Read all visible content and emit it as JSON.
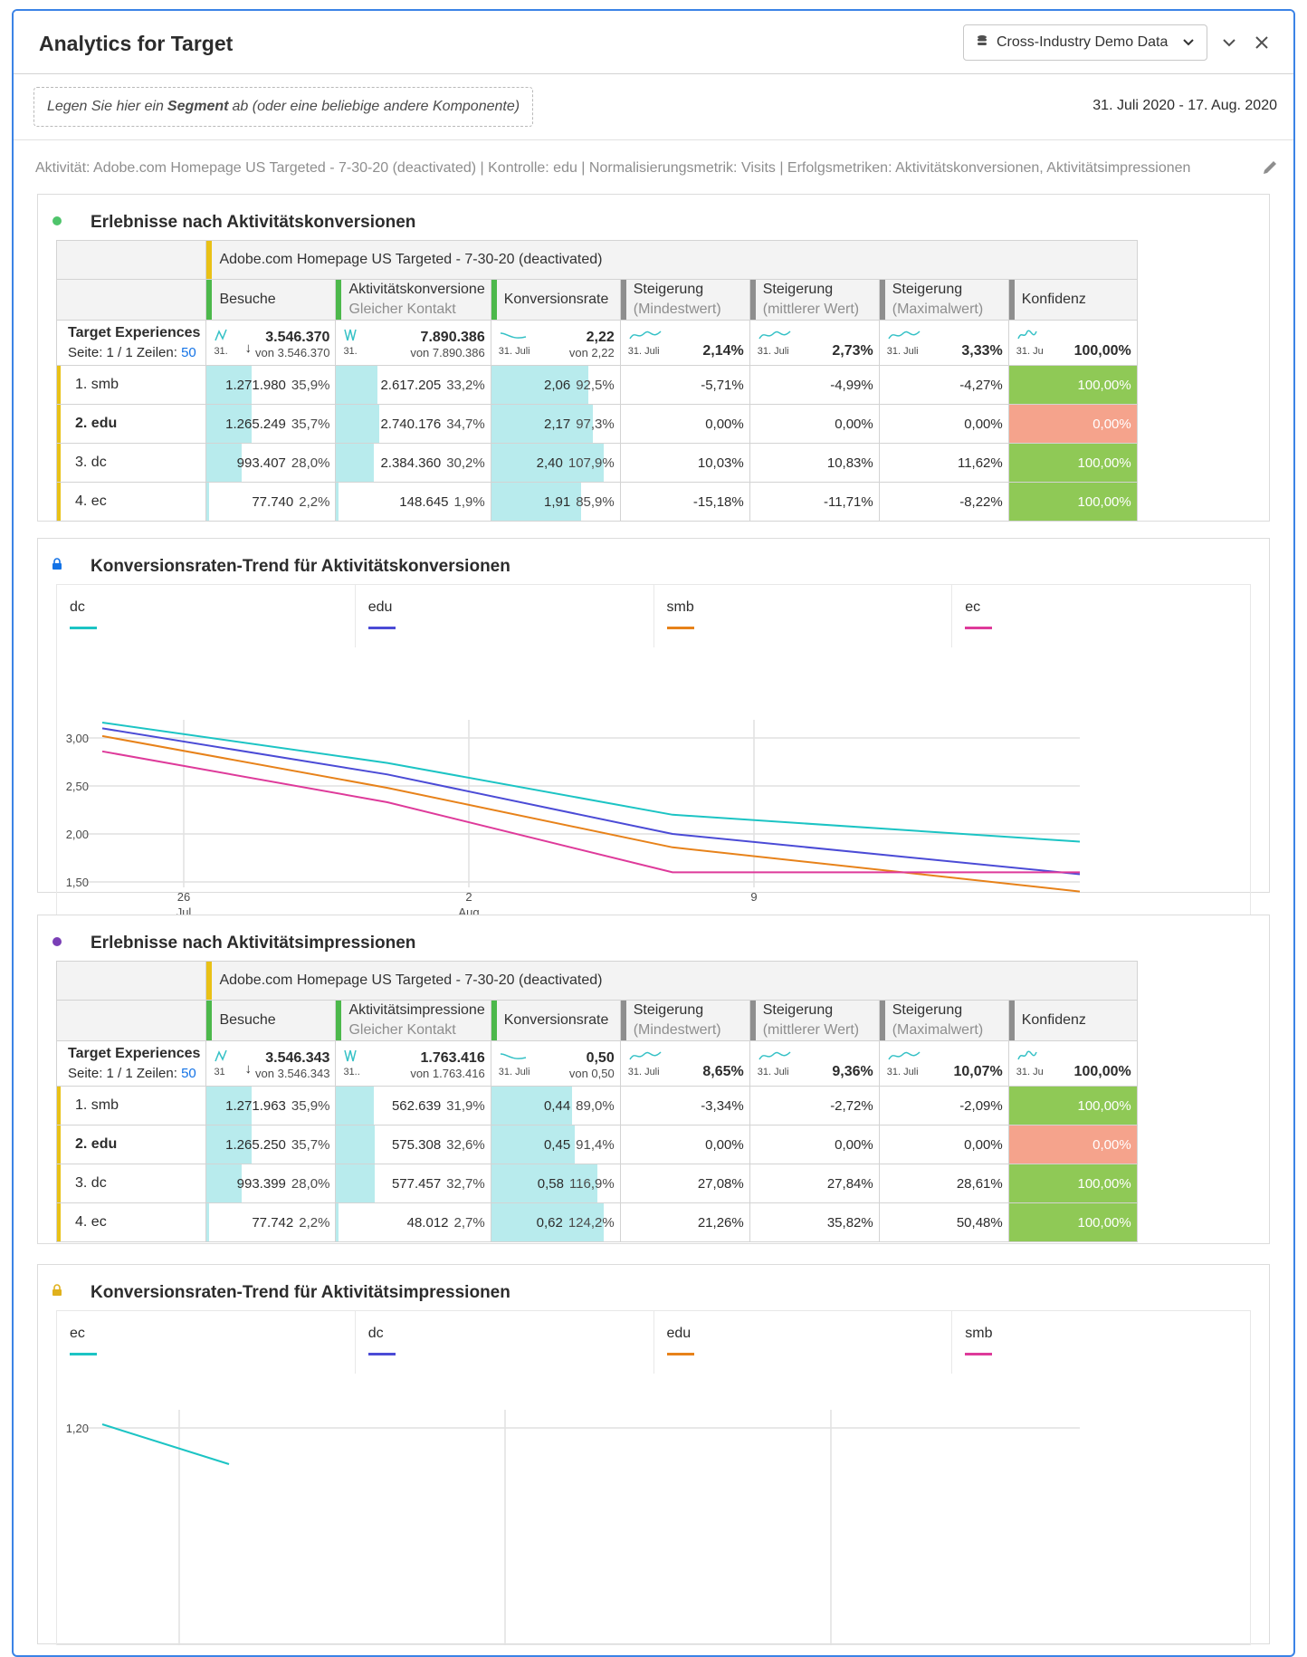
{
  "header": {
    "title": "Analytics for Target",
    "datasource": "Cross-Industry Demo Data"
  },
  "segment_drop": {
    "pre": "Legen Sie hier ein",
    "bold": "Segment",
    "post": "ab (oder eine beliebige andere Komponente)"
  },
  "date_range": "31. Juli 2020 - 17. Aug. 2020",
  "activity_line": "Aktivität: Adobe.com Homepage US Targeted - 7-30-20 (deactivated) | Kontrolle: edu | Normalisierungsmetrik: Visits | Erfolgsmetriken: Aktivitätskonversionen, Aktivitätsimpressionen",
  "panels": {
    "t1": {
      "title": "Erlebnisse nach Aktivitätskonversionen",
      "dot": "#4fc46b"
    },
    "c1": {
      "title": "Konversionsraten-Trend für Aktivitätskonversionen",
      "lock_color": "#1473e6"
    },
    "t2": {
      "title": "Erlebnisse nach Aktivitätsimpressionen",
      "dot": "#7a3fb6"
    },
    "c2": {
      "title": "Konversionsraten-Trend für Aktivitätsimpressionen",
      "lock_color": "#e0b11c"
    }
  },
  "table1": {
    "activity": "Adobe.com Homepage US Targeted - 7-30-20 (deactivated)",
    "dimension": "Target Experiences",
    "page_info": "Seite: 1 / 1 Zeilen:",
    "rows_per_page": "50",
    "columns": [
      {
        "label": "Besuche",
        "sub": "",
        "bar": "#4cb84b"
      },
      {
        "label": "Aktivitätskonversione",
        "sub": "Gleicher Kontakt",
        "bar": "#4cb84b"
      },
      {
        "label": "Konversionsrate",
        "sub": "",
        "bar": "#4cb84b"
      },
      {
        "label": "Steigerung",
        "sub": "(Mindestwert)",
        "bar": "#8e8e8e"
      },
      {
        "label": "Steigerung",
        "sub": "(mittlerer Wert)",
        "bar": "#8e8e8e"
      },
      {
        "label": "Steigerung",
        "sub": "(Maximalwert)",
        "bar": "#8e8e8e"
      },
      {
        "label": "Konfidenz",
        "sub": "",
        "bar": "#8e8e8e"
      }
    ],
    "totals": [
      {
        "big": "3.546.370",
        "small": "von 3.546.370",
        "date": "31."
      },
      {
        "big": "7.890.386",
        "small": "von 7.890.386",
        "date": "31."
      },
      {
        "big": "2,22",
        "small": "von 2,22",
        "date": "31. Juli"
      },
      {
        "big": "2,14%",
        "small": "",
        "date": "31. Juli"
      },
      {
        "big": "2,73%",
        "small": "",
        "date": "31. Juli"
      },
      {
        "big": "3,33%",
        "small": "",
        "date": "31. Juli"
      },
      {
        "big": "100,00%",
        "small": "",
        "date": "31. Ju"
      }
    ],
    "rows": [
      {
        "label": "1. smb",
        "bold": false,
        "v1": "1.271.980",
        "p1": "35,9%",
        "f1": 0.359,
        "v2": "2.617.205",
        "p2": "33,2%",
        "f2": 0.332,
        "v3": "2,06",
        "p3": "92,5%",
        "f3": 0.86,
        "l1": "-5,71%",
        "l2": "-4,99%",
        "l3": "-4,27%",
        "conf": "100,00%",
        "cc": "#8fc956"
      },
      {
        "label": "2. edu",
        "bold": true,
        "v1": "1.265.249",
        "p1": "35,7%",
        "f1": 0.357,
        "v2": "2.740.176",
        "p2": "34,7%",
        "f2": 0.347,
        "v3": "2,17",
        "p3": "97,3%",
        "f3": 0.9,
        "l1": "0,00%",
        "l2": "0,00%",
        "l3": "0,00%",
        "conf": "0,00%",
        "cc": "#f5a38c"
      },
      {
        "label": "3. dc",
        "bold": false,
        "v1": "993.407",
        "p1": "28,0%",
        "f1": 0.28,
        "v2": "2.384.360",
        "p2": "30,2%",
        "f2": 0.302,
        "v3": "2,40",
        "p3": "107,9%",
        "f3": 1.0,
        "l1": "10,03%",
        "l2": "10,83%",
        "l3": "11,62%",
        "conf": "100,00%",
        "cc": "#8fc956"
      },
      {
        "label": "4. ec",
        "bold": false,
        "v1": "77.740",
        "p1": "2,2%",
        "f1": 0.022,
        "v2": "148.645",
        "p2": "1,9%",
        "f2": 0.019,
        "v3": "1,91",
        "p3": "85,9%",
        "f3": 0.8,
        "l1": "-15,18%",
        "l2": "-11,71%",
        "l3": "-8,22%",
        "conf": "100,00%",
        "cc": "#8fc956"
      }
    ]
  },
  "table2": {
    "activity": "Adobe.com Homepage US Targeted - 7-30-20 (deactivated)",
    "dimension": "Target Experiences",
    "page_info": "Seite: 1 / 1 Zeilen:",
    "rows_per_page": "50",
    "columns": [
      {
        "label": "Besuche",
        "sub": "",
        "bar": "#4cb84b"
      },
      {
        "label": "Aktivitätsimpressione",
        "sub": "Gleicher Kontakt",
        "bar": "#4cb84b"
      },
      {
        "label": "Konversionsrate",
        "sub": "",
        "bar": "#4cb84b"
      },
      {
        "label": "Steigerung",
        "sub": "(Mindestwert)",
        "bar": "#8e8e8e"
      },
      {
        "label": "Steigerung",
        "sub": "(mittlerer Wert)",
        "bar": "#8e8e8e"
      },
      {
        "label": "Steigerung",
        "sub": "(Maximalwert)",
        "bar": "#8e8e8e"
      },
      {
        "label": "Konfidenz",
        "sub": "",
        "bar": "#8e8e8e"
      }
    ],
    "totals": [
      {
        "big": "3.546.343",
        "small": "von 3.546.343",
        "date": "31"
      },
      {
        "big": "1.763.416",
        "small": "von 1.763.416",
        "date": "31.."
      },
      {
        "big": "0,50",
        "small": "von 0,50",
        "date": "31. Juli"
      },
      {
        "big": "8,65%",
        "small": "",
        "date": "31. Juli"
      },
      {
        "big": "9,36%",
        "small": "",
        "date": "31. Juli"
      },
      {
        "big": "10,07%",
        "small": "",
        "date": "31. Juli"
      },
      {
        "big": "100,00%",
        "small": "",
        "date": "31. Ju"
      }
    ],
    "rows": [
      {
        "label": "1. smb",
        "bold": false,
        "v1": "1.271.963",
        "p1": "35,9%",
        "f1": 0.359,
        "v2": "562.639",
        "p2": "31,9%",
        "f2": 0.3,
        "v3": "0,44",
        "p3": "89,0%",
        "f3": 0.72,
        "l1": "-3,34%",
        "l2": "-2,72%",
        "l3": "-2,09%",
        "conf": "100,00%",
        "cc": "#8fc956"
      },
      {
        "label": "2. edu",
        "bold": true,
        "v1": "1.265.250",
        "p1": "35,7%",
        "f1": 0.357,
        "v2": "575.308",
        "p2": "32,6%",
        "f2": 0.31,
        "v3": "0,45",
        "p3": "91,4%",
        "f3": 0.74,
        "l1": "0,00%",
        "l2": "0,00%",
        "l3": "0,00%",
        "conf": "0,00%",
        "cc": "#f5a38c"
      },
      {
        "label": "3. dc",
        "bold": false,
        "v1": "993.399",
        "p1": "28,0%",
        "f1": 0.28,
        "v2": "577.457",
        "p2": "32,7%",
        "f2": 0.31,
        "v3": "0,58",
        "p3": "116,9%",
        "f3": 0.94,
        "l1": "27,08%",
        "l2": "27,84%",
        "l3": "28,61%",
        "conf": "100,00%",
        "cc": "#8fc956"
      },
      {
        "label": "4. ec",
        "bold": false,
        "v1": "77.742",
        "p1": "2,2%",
        "f1": 0.022,
        "v2": "48.012",
        "p2": "2,7%",
        "f2": 0.025,
        "v3": "0,62",
        "p3": "124,2%",
        "f3": 1.0,
        "l1": "21,26%",
        "l2": "35,82%",
        "l3": "50,48%",
        "conf": "100,00%",
        "cc": "#8fc956"
      }
    ]
  },
  "chart_data": [
    {
      "type": "line",
      "title": "Konversionsraten-Trend für Aktivitätskonversionen",
      "x": [
        "2020-07-24",
        "2020-08-06",
        "2020-08-17"
      ],
      "xticks": [
        {
          "label": "26",
          "sub": "Jul",
          "x": "2020-07-26"
        },
        {
          "label": "2",
          "sub": "Aug",
          "x": "2020-08-02"
        },
        {
          "label": "9",
          "sub": "",
          "x": "2020-08-09"
        }
      ],
      "yticks": [
        "3,00",
        "2,50",
        "2,00",
        "1,50"
      ],
      "ylim": [
        1.5,
        3.0
      ],
      "grid": true,
      "series": [
        {
          "name": "dc",
          "color": "#1cc4c4",
          "points": [
            [
              "2020-07-24",
              3.16
            ],
            [
              "2020-07-31",
              2.74
            ],
            [
              "2020-08-07",
              2.2
            ],
            [
              "2020-08-17",
              1.92
            ]
          ]
        },
        {
          "name": "edu",
          "color": "#4b4bd6",
          "points": [
            [
              "2020-07-24",
              3.1
            ],
            [
              "2020-07-31",
              2.62
            ],
            [
              "2020-08-07",
              2.0
            ],
            [
              "2020-08-17",
              1.58
            ]
          ]
        },
        {
          "name": "smb",
          "color": "#e7821a",
          "points": [
            [
              "2020-07-24",
              3.02
            ],
            [
              "2020-07-31",
              2.48
            ],
            [
              "2020-08-07",
              1.86
            ],
            [
              "2020-08-17",
              1.4
            ]
          ]
        },
        {
          "name": "ec",
          "color": "#de3a9a",
          "points": [
            [
              "2020-07-24",
              2.86
            ],
            [
              "2020-07-31",
              2.33
            ],
            [
              "2020-08-07",
              1.6
            ],
            [
              "2020-08-17",
              1.6
            ]
          ]
        }
      ]
    },
    {
      "type": "line",
      "title": "Konversionsraten-Trend für Aktivitätsimpressionen",
      "yticks": [
        "1,20"
      ],
      "series": [
        {
          "name": "ec",
          "color": "#1cc4c4",
          "points": [
            [
              "2020-07-24",
              1.2
            ],
            [
              "2020-07-30",
              1.08
            ]
          ]
        },
        {
          "name": "dc",
          "color": "#4b4bd6",
          "points": []
        },
        {
          "name": "edu",
          "color": "#e7821a",
          "points": []
        },
        {
          "name": "smb",
          "color": "#de3a9a",
          "points": []
        }
      ]
    }
  ]
}
